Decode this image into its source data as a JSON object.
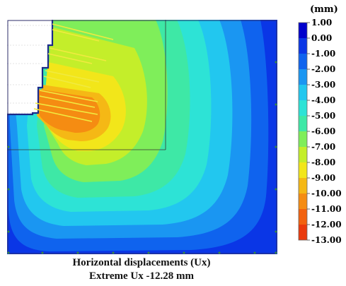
{
  "unit": "(mm)",
  "colorbar": {
    "labels": [
      "1.00",
      "0.00",
      "-1.00",
      "-2.00",
      "-3.00",
      "-4.00",
      "-5.00",
      "-6.00",
      "-7.00",
      "-8.00",
      "-9.00",
      "-10.00",
      "-11.00",
      "-12.00",
      "-13.00"
    ],
    "colors": [
      "#0000cc",
      "#0a36e6",
      "#0f63ee",
      "#1a96f2",
      "#22c7ef",
      "#2de3d6",
      "#3ee8a6",
      "#7fee5a",
      "#c4ee2a",
      "#f2e61a",
      "#f5b815",
      "#f58c12",
      "#f2620f",
      "#ea3a0c",
      "#e0180a"
    ]
  },
  "caption": {
    "line1": "Horizontal displacements (Ux)",
    "line2": "Extreme Ux -12.28 mm"
  }
}
